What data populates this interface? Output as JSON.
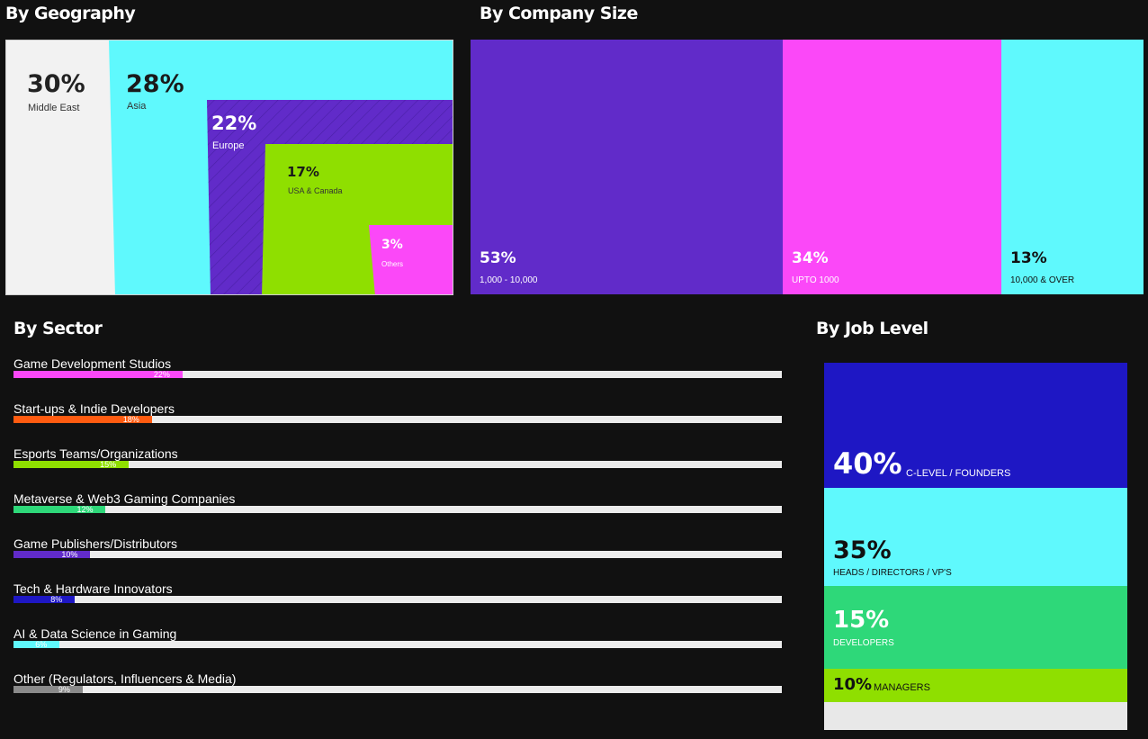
{
  "colors": {
    "background": "#111111",
    "light_gray": "#f2f2f2",
    "cyan": "#5ff9fd",
    "purple": "#612bc9",
    "green_lime": "#8fdf00",
    "magenta": "#fb48f8",
    "orange": "#ff5b10",
    "green": "#2ed879",
    "navy": "#1e17c4",
    "gray": "#8a8a8a"
  },
  "chart_data": [
    {
      "type": "treemap",
      "title": "By Geography",
      "categories": [
        "Middle East",
        "Asia",
        "Europe",
        "USA & Canada",
        "Others"
      ],
      "values": [
        30,
        28,
        22,
        17,
        3
      ],
      "labels": [
        "30%",
        "28%",
        "22%",
        "17%",
        "3%"
      ]
    },
    {
      "type": "bar",
      "title": "By Company Size",
      "categories": [
        "1,000 - 10,000",
        "UPTO 1000",
        "10,000 & OVER"
      ],
      "values": [
        53,
        34,
        13
      ],
      "labels": [
        "53%",
        "34%",
        "13%"
      ]
    },
    {
      "type": "bar",
      "title": "By Sector",
      "categories": [
        "Game Development Studios",
        "Start-ups & Indie Developers",
        "Esports Teams/Organizations",
        "Metaverse & Web3 Gaming Companies",
        "Game Publishers/Distributors",
        "Tech & Hardware Innovators",
        "AI & Data Science in Gaming",
        "Other (Regulators, Influencers & Media)"
      ],
      "values": [
        22,
        18,
        15,
        12,
        10,
        8,
        6,
        9
      ],
      "labels": [
        "22%",
        "18%",
        "15%",
        "12%",
        "10%",
        "8%",
        "6%",
        "9%"
      ],
      "bar_colors": [
        "#fb48f8",
        "#ff5b10",
        "#8fdf00",
        "#2ed879",
        "#612bc9",
        "#1e17c4",
        "#5ff9fd",
        "#8a8a8a"
      ],
      "xlim": [
        0,
        100
      ]
    },
    {
      "type": "bar",
      "title": "By Job Level",
      "categories": [
        "C-LEVEL / FOUNDERS",
        "HEADS / DIRECTORS / VP'S",
        "DEVELOPERS",
        "MANAGERS"
      ],
      "values": [
        40,
        35,
        15,
        10
      ],
      "labels": [
        "40%",
        "35%",
        "15%",
        "10%"
      ]
    }
  ]
}
